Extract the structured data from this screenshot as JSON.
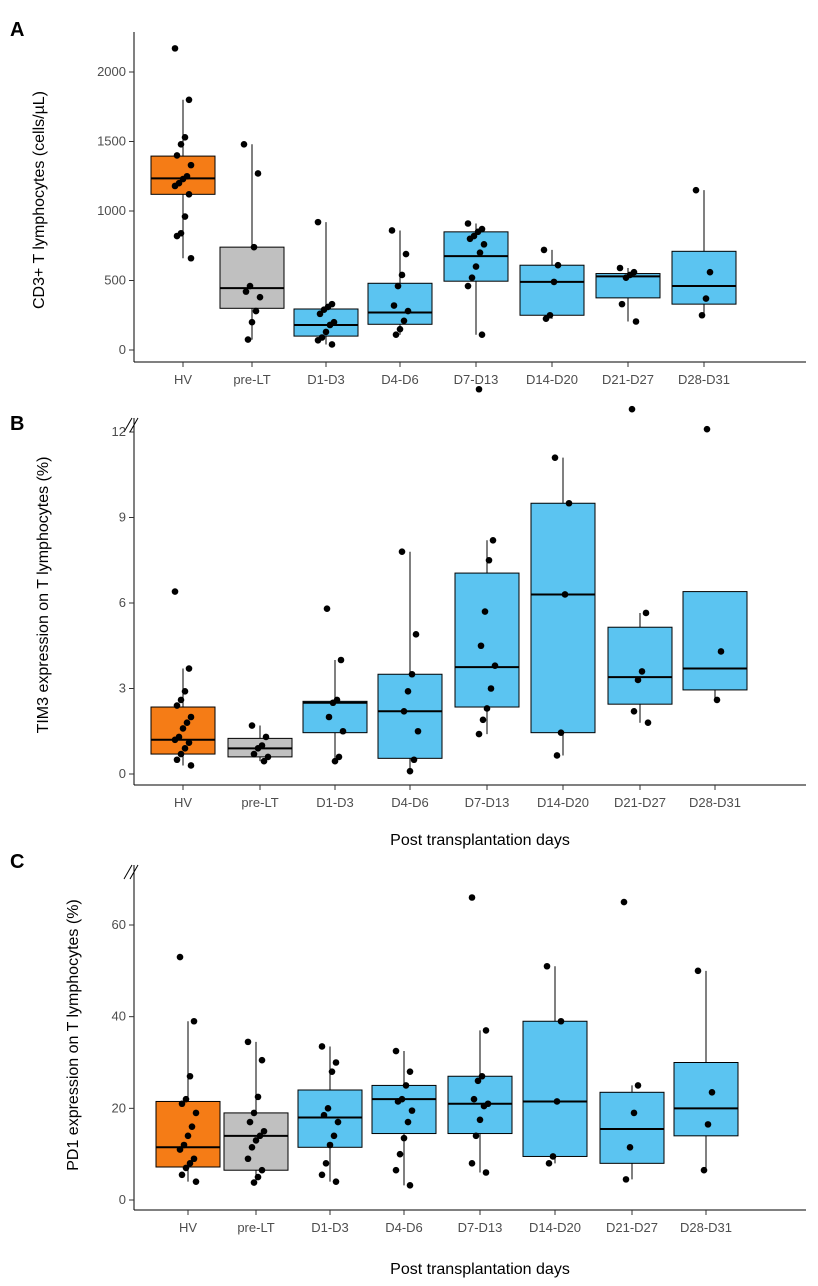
{
  "chart_data": [
    {
      "panel": "A",
      "type": "box",
      "ylabel": "CD3+ T lymphocytes (cells/µL)",
      "xlabel": "",
      "ylim": [
        0,
        2250
      ],
      "yticks": [
        0,
        500,
        1000,
        1500,
        2000
      ],
      "axis_break": false,
      "grid": false,
      "categories": [
        "HV",
        "pre-LT",
        "D1-D3",
        "D4-D6",
        "D7-D13",
        "D14-D20",
        "D21-D27",
        "D28-D31"
      ],
      "colors": [
        "#f57c16",
        "#c0c0c0",
        "#5bc4f1",
        "#5bc4f1",
        "#5bc4f1",
        "#5bc4f1",
        "#5bc4f1",
        "#5bc4f1"
      ],
      "boxes": [
        {
          "q1": 1120,
          "median": 1235,
          "q3": 1395,
          "whisker_low": 660,
          "whisker_high": 1800
        },
        {
          "q1": 300,
          "median": 445,
          "q3": 740,
          "whisker_low": 75,
          "whisker_high": 1480
        },
        {
          "q1": 100,
          "median": 180,
          "q3": 295,
          "whisker_low": 40,
          "whisker_high": 920
        },
        {
          "q1": 185,
          "median": 270,
          "q3": 480,
          "whisker_low": 110,
          "whisker_high": 860
        },
        {
          "q1": 495,
          "median": 675,
          "q3": 850,
          "whisker_low": 110,
          "whisker_high": 910
        },
        {
          "q1": 250,
          "median": 490,
          "q3": 610,
          "whisker_low": 225,
          "whisker_high": 720
        },
        {
          "q1": 375,
          "median": 530,
          "q3": 550,
          "whisker_low": 205,
          "whisker_high": 590
        },
        {
          "q1": 330,
          "median": 460,
          "q3": 710,
          "whisker_low": 250,
          "whisker_high": 1150
        }
      ],
      "points": [
        [
          2170,
          1800,
          1530,
          1480,
          1400,
          1330,
          1250,
          1230,
          1200,
          1180,
          1120,
          960,
          840,
          820,
          660
        ],
        [
          1480,
          1270,
          740,
          460,
          420,
          380,
          280,
          200,
          75
        ],
        [
          920,
          330,
          310,
          290,
          260,
          200,
          180,
          130,
          90,
          70,
          40
        ],
        [
          860,
          690,
          540,
          460,
          320,
          280,
          210,
          150,
          110
        ],
        [
          910,
          870,
          850,
          820,
          800,
          760,
          700,
          600,
          520,
          460,
          110
        ],
        [
          720,
          610,
          490,
          250,
          225
        ],
        [
          590,
          560,
          540,
          520,
          330,
          205
        ],
        [
          1150,
          560,
          370,
          250
        ]
      ]
    },
    {
      "panel": "B",
      "type": "box",
      "ylabel": "TIM3 expression on T lymphocytes (%)",
      "xlabel": "Post transplantation days",
      "ylim": [
        -0.5,
        13.5
      ],
      "yticks": [
        0,
        3,
        6,
        9,
        12
      ],
      "axis_break": true,
      "grid": false,
      "categories": [
        "HV",
        "pre-LT",
        "D1-D3",
        "D4-D6",
        "D7-D13",
        "D14-D20",
        "D21-D27",
        "D28-D31"
      ],
      "colors": [
        "#f57c16",
        "#c0c0c0",
        "#5bc4f1",
        "#5bc4f1",
        "#5bc4f1",
        "#5bc4f1",
        "#5bc4f1",
        "#5bc4f1"
      ],
      "boxes": [
        {
          "q1": 0.7,
          "median": 1.2,
          "q3": 2.35,
          "whisker_low": 0.3,
          "whisker_high": 3.7
        },
        {
          "q1": 0.6,
          "median": 0.9,
          "q3": 1.25,
          "whisker_low": 0.45,
          "whisker_high": 1.7
        },
        {
          "q1": 1.45,
          "median": 2.5,
          "q3": 2.55,
          "whisker_low": 0.45,
          "whisker_high": 4.0
        },
        {
          "q1": 0.55,
          "median": 2.2,
          "q3": 3.5,
          "whisker_low": 0.1,
          "whisker_high": 7.8
        },
        {
          "q1": 2.35,
          "median": 3.75,
          "q3": 7.05,
          "whisker_low": 1.4,
          "whisker_high": 8.2
        },
        {
          "q1": 1.45,
          "median": 6.3,
          "q3": 9.5,
          "whisker_low": 0.65,
          "whisker_high": 11.1
        },
        {
          "q1": 2.45,
          "median": 3.4,
          "q3": 5.15,
          "whisker_low": 1.8,
          "whisker_high": 5.65
        },
        {
          "q1": 2.95,
          "median": 3.7,
          "q3": 6.4,
          "whisker_low": 2.6,
          "whisker_high": 6.4
        }
      ],
      "points": [
        [
          6.4,
          3.7,
          2.9,
          2.6,
          2.4,
          2.0,
          1.8,
          1.6,
          1.3,
          1.2,
          1.1,
          0.9,
          0.7,
          0.5,
          0.3
        ],
        [
          1.7,
          1.3,
          1.0,
          0.9,
          0.7,
          0.6,
          0.45
        ],
        [
          5.8,
          4.0,
          2.6,
          2.5,
          2.0,
          1.5,
          0.6,
          0.45
        ],
        [
          7.8,
          4.9,
          3.5,
          2.9,
          2.2,
          1.5,
          0.5,
          0.1
        ],
        [
          13.5,
          8.2,
          7.5,
          5.7,
          4.5,
          3.8,
          3.0,
          2.3,
          1.9,
          1.4
        ],
        [
          11.1,
          9.5,
          6.3,
          1.45,
          0.65
        ],
        [
          12.8,
          5.65,
          3.6,
          3.3,
          2.2,
          1.8
        ],
        [
          12.1,
          4.3,
          2.6
        ]
      ]
    },
    {
      "panel": "C",
      "type": "box",
      "ylabel": "PD1 expression on T lymphocytes (%)",
      "xlabel": "Post transplantation days",
      "ylim": [
        -3,
        70
      ],
      "yticks": [
        0,
        20,
        40,
        60
      ],
      "axis_break": true,
      "grid": false,
      "categories": [
        "HV",
        "pre-LT",
        "D1-D3",
        "D4-D6",
        "D7-D13",
        "D14-D20",
        "D21-D27",
        "D28-D31"
      ],
      "colors": [
        "#f57c16",
        "#c0c0c0",
        "#5bc4f1",
        "#5bc4f1",
        "#5bc4f1",
        "#5bc4f1",
        "#5bc4f1",
        "#5bc4f1"
      ],
      "boxes": [
        {
          "q1": 7.2,
          "median": 11.5,
          "q3": 21.5,
          "whisker_low": 4,
          "whisker_high": 39
        },
        {
          "q1": 6.5,
          "median": 14,
          "q3": 19,
          "whisker_low": 3.8,
          "whisker_high": 34.5
        },
        {
          "q1": 11.5,
          "median": 18,
          "q3": 24,
          "whisker_low": 4,
          "whisker_high": 33.5
        },
        {
          "q1": 14.5,
          "median": 22,
          "q3": 25,
          "whisker_low": 3.2,
          "whisker_high": 32.5
        },
        {
          "q1": 14.5,
          "median": 21,
          "q3": 27,
          "whisker_low": 6,
          "whisker_high": 37
        },
        {
          "q1": 9.5,
          "median": 21.5,
          "q3": 39,
          "whisker_low": 8,
          "whisker_high": 51
        },
        {
          "q1": 8,
          "median": 15.5,
          "q3": 23.5,
          "whisker_low": 4.5,
          "whisker_high": 25
        },
        {
          "q1": 14,
          "median": 20,
          "q3": 30,
          "whisker_low": 6.5,
          "whisker_high": 50
        }
      ],
      "points": [
        [
          53,
          39,
          27,
          22,
          21,
          19,
          16,
          14,
          12,
          11,
          9,
          8,
          7,
          5.5,
          4
        ],
        [
          34.5,
          30.5,
          22.5,
          19,
          17,
          15,
          14,
          13,
          11.5,
          9,
          6.5,
          5,
          3.8
        ],
        [
          33.5,
          30,
          28,
          20,
          18.5,
          17,
          14,
          12,
          8,
          5.5,
          4
        ],
        [
          32.5,
          28,
          25,
          22,
          21.5,
          19.5,
          17,
          13.5,
          10,
          6.5,
          3.2
        ],
        [
          66,
          37,
          27,
          26,
          22,
          21,
          20.5,
          17.5,
          14,
          8,
          6
        ],
        [
          51,
          39,
          21.5,
          9.5,
          8
        ],
        [
          65,
          25,
          19,
          11.5,
          4.5
        ],
        [
          50,
          23.5,
          16.5,
          6.5
        ]
      ]
    }
  ]
}
